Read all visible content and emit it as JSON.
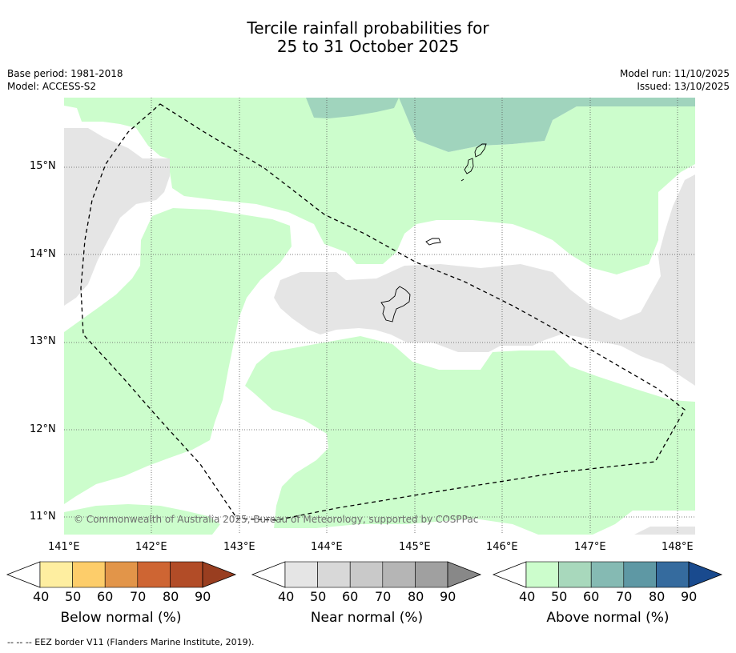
{
  "header": {
    "title_line1": "Tercile rainfall probabilities for",
    "title_line2": "25 to 31 October 2025",
    "base_period": "Base period: 1981-2018",
    "model": "Model: ACCESS-S2",
    "model_run": "Model run: 11/10/2025",
    "issued": "Issued: 13/10/2025"
  },
  "map": {
    "copyright": "© Commonwealth of Australia 2025, Bureau of Meteorology, supported by COSPPac",
    "lat_labels": [
      "15°N",
      "14°N",
      "13°N",
      "12°N",
      "11°N"
    ],
    "lon_labels": [
      "141°E",
      "142°E",
      "143°E",
      "144°E",
      "145°E",
      "146°E",
      "147°E",
      "148°E"
    ],
    "colors": {
      "above_40": "#ccfdcc",
      "above_50": "#a0d4bd",
      "near_40": "#e5e5e5",
      "coast": "#000000",
      "eez": "#000000"
    }
  },
  "colorbars": [
    {
      "title": "Below normal (%)",
      "ticks": [
        "40",
        "50",
        "60",
        "70",
        "80",
        "90"
      ],
      "colors": [
        "#feeea0",
        "#fdcd6a",
        "#e29549",
        "#ce6533",
        "#b24c27",
        "#993e20"
      ]
    },
    {
      "title": "Near normal (%)",
      "ticks": [
        "40",
        "50",
        "60",
        "70",
        "80",
        "90"
      ],
      "colors": [
        "#e5e5e5",
        "#d8d8d8",
        "#c9c9c9",
        "#b5b5b5",
        "#a0a0a0",
        "#888888"
      ]
    },
    {
      "title": "Above normal (%)",
      "ticks": [
        "40",
        "50",
        "60",
        "70",
        "80",
        "90"
      ],
      "colors": [
        "#ccfdcc",
        "#a8d8bc",
        "#85bab3",
        "#5e98a4",
        "#356b9e",
        "#194a8e"
      ]
    }
  ],
  "footnote": "--  --  -- EEZ border V11 (Flanders Marine Institute, 2019)."
}
